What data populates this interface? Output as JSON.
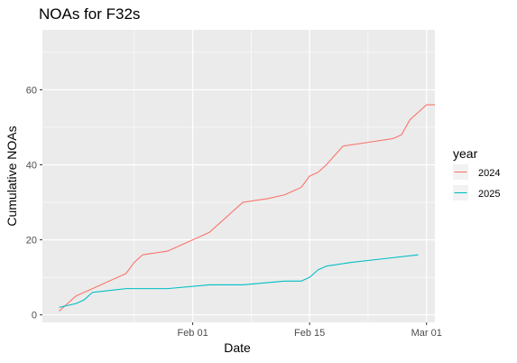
{
  "chart_data": {
    "type": "line",
    "title": "NOAs for F32s",
    "xlabel": "Date",
    "ylabel": "Cumulative NOAs",
    "x_type": "date",
    "xlim": [
      "2025-01-14",
      "2025-03-02"
    ],
    "ylim": [
      -2,
      76
    ],
    "x_ticks": [
      {
        "value": "2025-02-01",
        "label": "Feb 01"
      },
      {
        "value": "2025-02-15",
        "label": "Feb 15"
      },
      {
        "value": "2025-03-01",
        "label": "Mar 01"
      }
    ],
    "y_ticks": [
      {
        "value": 0,
        "label": "0"
      },
      {
        "value": 20,
        "label": "20"
      },
      {
        "value": 40,
        "label": "40"
      },
      {
        "value": 60,
        "label": "60"
      }
    ],
    "grid": true,
    "legend": {
      "title": "year",
      "position": "right"
    },
    "series": [
      {
        "name": "2024",
        "color": "#F8766D",
        "points": [
          [
            "2025-01-16",
            1
          ],
          [
            "2025-01-17",
            3
          ],
          [
            "2025-01-18",
            5
          ],
          [
            "2025-01-20",
            7
          ],
          [
            "2025-01-22",
            9
          ],
          [
            "2025-01-23",
            10
          ],
          [
            "2025-01-24",
            11
          ],
          [
            "2025-01-25",
            14
          ],
          [
            "2025-01-26",
            16
          ],
          [
            "2025-01-29",
            17
          ],
          [
            "2025-01-30",
            18
          ],
          [
            "2025-01-31",
            19
          ],
          [
            "2025-02-01",
            20
          ],
          [
            "2025-02-02",
            21
          ],
          [
            "2025-02-03",
            22
          ],
          [
            "2025-02-05",
            26
          ],
          [
            "2025-02-07",
            30
          ],
          [
            "2025-02-10",
            31
          ],
          [
            "2025-02-12",
            32
          ],
          [
            "2025-02-14",
            34
          ],
          [
            "2025-02-15",
            37
          ],
          [
            "2025-02-16",
            38
          ],
          [
            "2025-02-17",
            40
          ],
          [
            "2025-02-19",
            45
          ],
          [
            "2025-02-22",
            46
          ],
          [
            "2025-02-25",
            47
          ],
          [
            "2025-02-26",
            48
          ],
          [
            "2025-02-27",
            52
          ],
          [
            "2025-02-28",
            54
          ],
          [
            "2025-03-01",
            56
          ],
          [
            "2025-03-02",
            56
          ]
        ]
      },
      {
        "name": "2025",
        "color": "#00BFC4",
        "points": [
          [
            "2025-01-16",
            2
          ],
          [
            "2025-01-18",
            3
          ],
          [
            "2025-01-19",
            4
          ],
          [
            "2025-01-20",
            6
          ],
          [
            "2025-01-24",
            7
          ],
          [
            "2025-01-29",
            7
          ],
          [
            "2025-02-03",
            8
          ],
          [
            "2025-02-07",
            8
          ],
          [
            "2025-02-12",
            9
          ],
          [
            "2025-02-14",
            9
          ],
          [
            "2025-02-15",
            10
          ],
          [
            "2025-02-16",
            12
          ],
          [
            "2025-02-17",
            13
          ],
          [
            "2025-02-20",
            14
          ],
          [
            "2025-02-24",
            15
          ],
          [
            "2025-02-28",
            16
          ]
        ]
      }
    ]
  }
}
